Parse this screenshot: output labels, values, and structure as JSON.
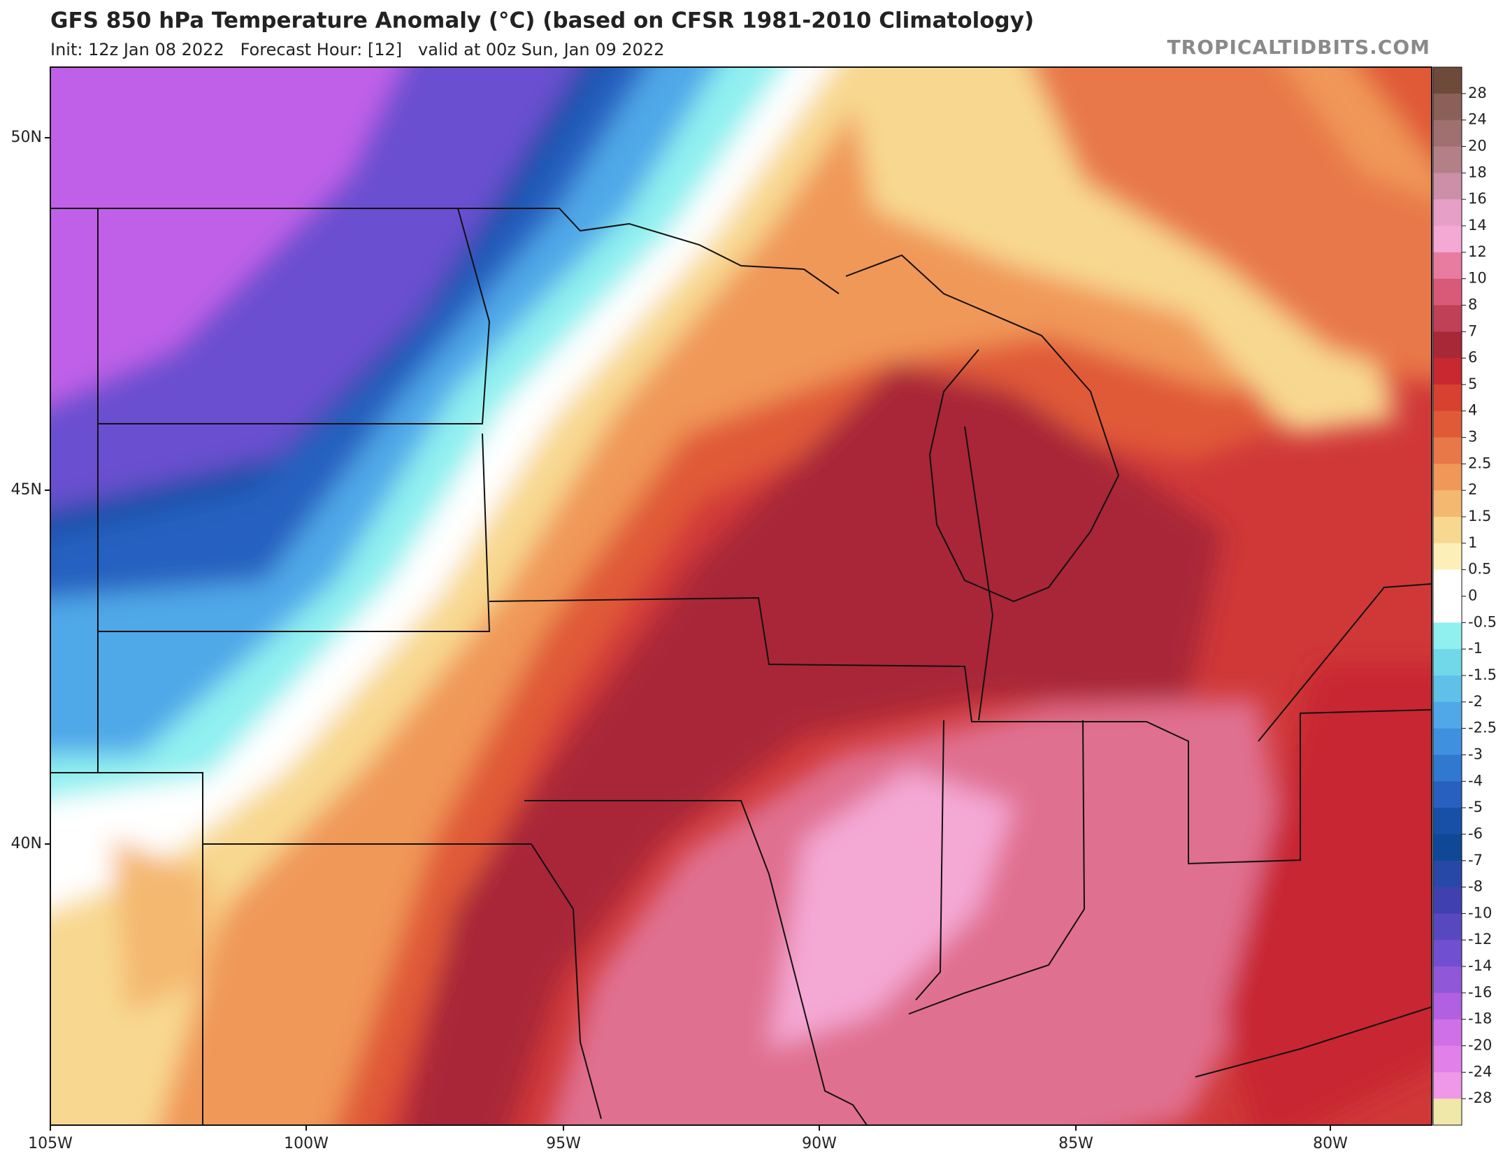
{
  "header": {
    "title": "GFS 850 hPa Temperature Anomaly (°C) (based on CFSR 1981-2010 Climatology)",
    "subtitle": "Init: 12z Jan 08 2022   Forecast Hour: [12]   valid at 00z Sun, Jan 09 2022",
    "site": "TROPICALTIDBITS.COM"
  },
  "map": {
    "lat_labels": [
      "50N",
      "45N",
      "40N"
    ],
    "lon_labels": [
      "105W",
      "100W",
      "95W",
      "90W",
      "85W",
      "80W"
    ]
  },
  "colorbar": {
    "labels": [
      "28",
      "24",
      "20",
      "18",
      "16",
      "14",
      "12",
      "10",
      "8",
      "7",
      "6",
      "5",
      "4",
      "3",
      "2.5",
      "2",
      "1.5",
      "1",
      "0.5",
      "0",
      "-0.5",
      "-1",
      "-1.5",
      "-2",
      "-2.5",
      "-3",
      "-4",
      "-5",
      "-6",
      "-7",
      "-8",
      "-10",
      "-12",
      "-14",
      "-16",
      "-18",
      "-20",
      "-24",
      "-28"
    ],
    "colors": [
      "#6e4a3a",
      "#8a6058",
      "#a07070",
      "#b48088",
      "#cc8fa8",
      "#e6a0c8",
      "#f4a8d4",
      "#e87ca0",
      "#d85a78",
      "#c04058",
      "#a82838",
      "#c82830",
      "#d84030",
      "#e05a38",
      "#e87848",
      "#f09858",
      "#f4b870",
      "#f8d890",
      "#fcf0b8",
      "#ffffff",
      "#ffffff",
      "#90f0f0",
      "#70d8e8",
      "#60c0e8",
      "#50a8e8",
      "#4090e0",
      "#3078d0",
      "#2860c0",
      "#1850a8",
      "#104898",
      "#2848a8",
      "#4040b0",
      "#5848c0",
      "#7050d0",
      "#9058d8",
      "#b060e0",
      "#d070e8",
      "#e080e8",
      "#f098e8",
      "#f0e8a8"
    ]
  }
}
